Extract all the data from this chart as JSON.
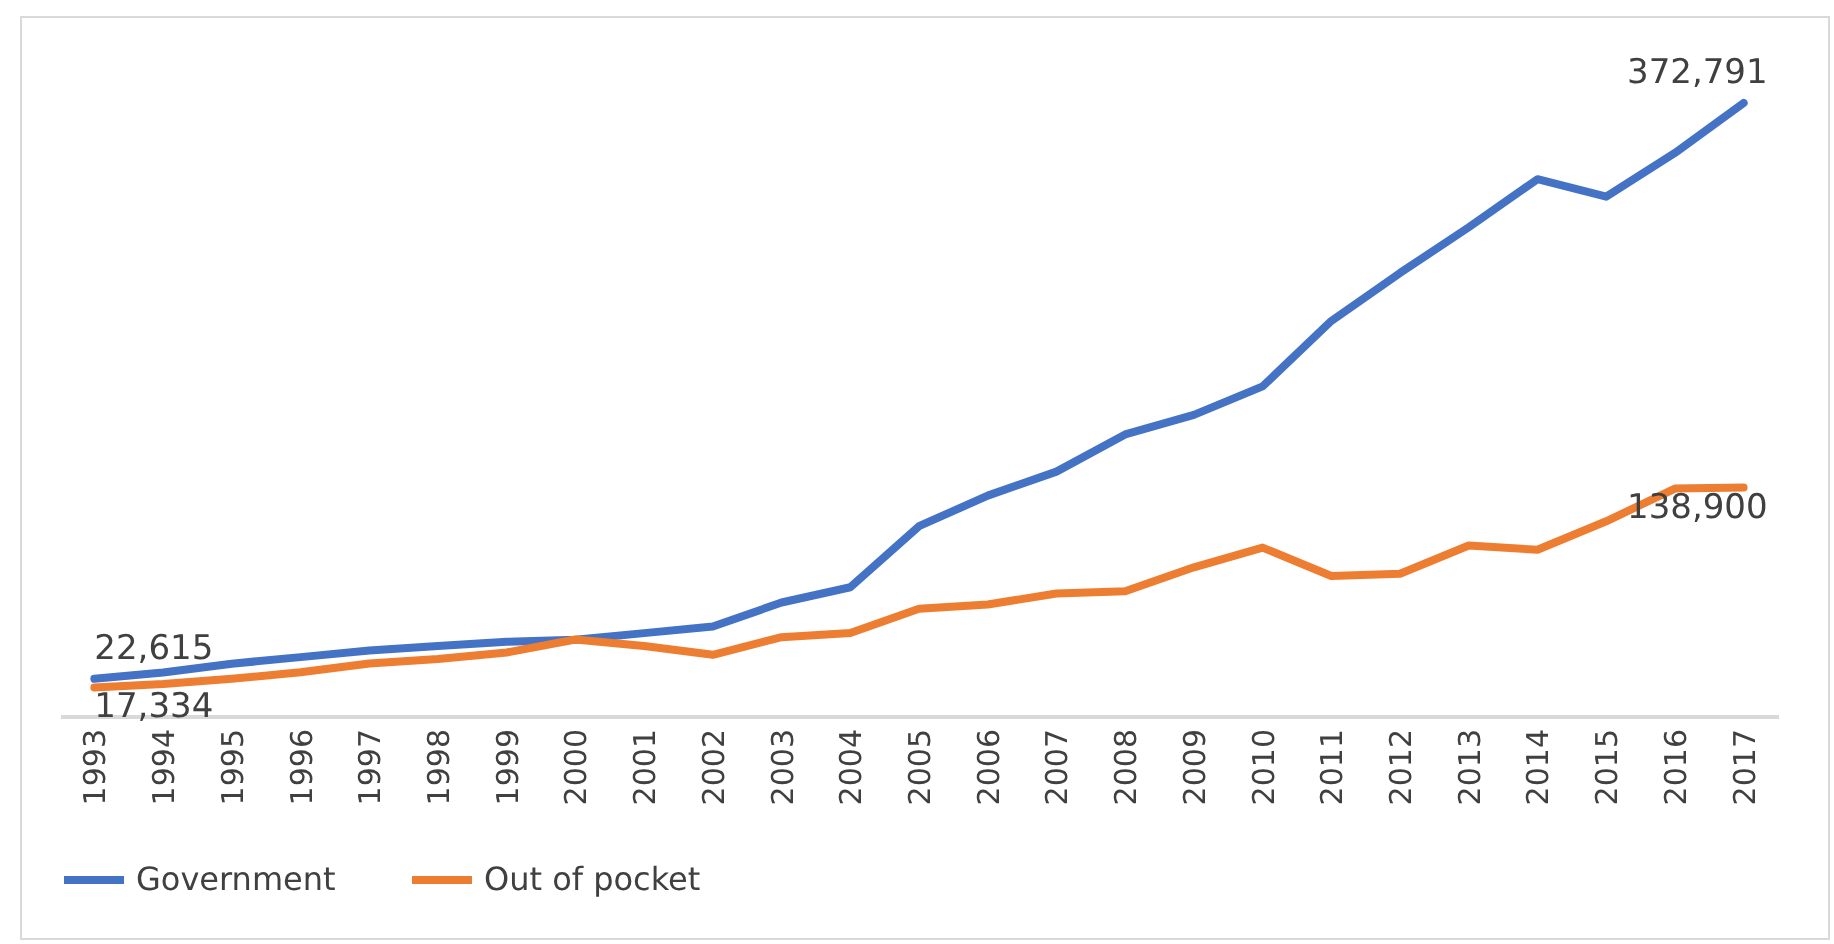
{
  "chart_data": {
    "type": "line",
    "categories": [
      "1993",
      "1994",
      "1995",
      "1996",
      "1997",
      "1998",
      "1999",
      "2000",
      "2001",
      "2002",
      "2003",
      "2004",
      "2005",
      "2006",
      "2007",
      "2008",
      "2009",
      "2010",
      "2011",
      "2012",
      "2013",
      "2014",
      "2015",
      "2016",
      "2017"
    ],
    "series": [
      {
        "name": "Government",
        "color": "#4472c4",
        "values": [
          22615,
          26500,
          31800,
          35800,
          39800,
          42500,
          45100,
          46400,
          50400,
          54400,
          69000,
          78300,
          115400,
          134000,
          148600,
          171200,
          183100,
          200400,
          240200,
          269400,
          297200,
          326400,
          315800,
          342400,
          372791
        ],
        "value_labels": [
          "22,615",
          null,
          null,
          null,
          null,
          null,
          null,
          null,
          null,
          null,
          null,
          null,
          null,
          null,
          null,
          null,
          null,
          null,
          null,
          null,
          null,
          null,
          null,
          null,
          "372,791"
        ]
      },
      {
        "name": "Out of pocket",
        "color": "#ed7d31",
        "values": [
          17334,
          19500,
          22600,
          26600,
          31900,
          34600,
          38600,
          46500,
          42600,
          37200,
          47900,
          50500,
          65200,
          67800,
          74500,
          75800,
          90400,
          102400,
          85100,
          86500,
          103700,
          101100,
          118400,
          138300,
          138900
        ],
        "value_labels": [
          "17,334",
          null,
          null,
          null,
          null,
          null,
          null,
          null,
          null,
          null,
          null,
          null,
          null,
          null,
          null,
          null,
          null,
          null,
          null,
          null,
          null,
          null,
          null,
          null,
          "138,900"
        ]
      }
    ],
    "legend": "bottom",
    "grid": false,
    "marker": "none",
    "line_style": "solid",
    "tick_labels": "x"
  }
}
